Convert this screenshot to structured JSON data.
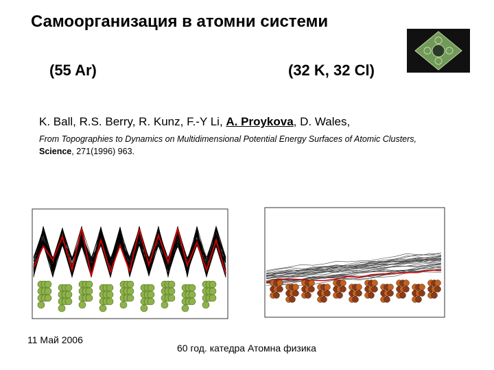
{
  "header": {
    "title": "Самоорганизация в атомни системи"
  },
  "labels": {
    "left": "(55 Ar)",
    "right": "(32 K, 32 Cl)"
  },
  "authors": {
    "before": "K. Ball, R.S. Berry, R. Kunz, F.-Y Li, ",
    "highlight": "A. Proykova",
    "after": ", D. Wales,"
  },
  "reference": {
    "title": "From Topographies to Dynamics on Multidimensional Potential Energy Surfaces of Atomic Clusters",
    "sep": ", ",
    "journal": "Science",
    "rest": ", 271(1996) 963."
  },
  "footer": {
    "date": "11 Май 2006",
    "center": "60 год. катедра Атомна физика"
  }
}
